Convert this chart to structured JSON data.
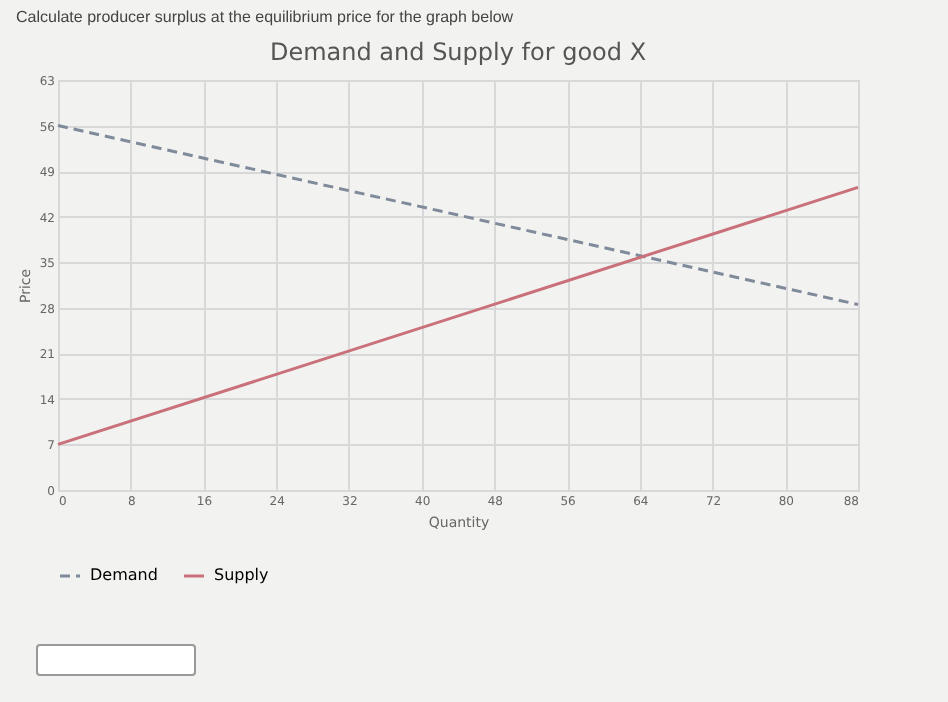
{
  "chart_data": {
    "type": "line",
    "title": "Demand and Supply for good X",
    "annotations": [
      "Calculate producer surplus at the equilibrium price for the graph below"
    ],
    "xlabel": "Quantity",
    "ylabel": "Price",
    "x": [
      0,
      88
    ],
    "series": [
      {
        "name": "Demand",
        "color": "#7f8a9a",
        "line_style": "dashed",
        "values": [
          56,
          28.5
        ]
      },
      {
        "name": "Supply",
        "color": "#c9707a",
        "line_style": "solid",
        "values": [
          7,
          46.5
        ]
      }
    ],
    "xlim": [
      0,
      88
    ],
    "xticks": [
      0,
      8,
      16,
      24,
      32,
      40,
      48,
      56,
      64,
      72,
      80,
      88
    ],
    "ylim": [
      0,
      63
    ],
    "yticks": [
      0,
      7,
      14,
      21,
      28,
      35,
      42,
      49,
      56,
      63
    ],
    "grid": true,
    "legend": "bottom",
    "marker": "none"
  }
}
